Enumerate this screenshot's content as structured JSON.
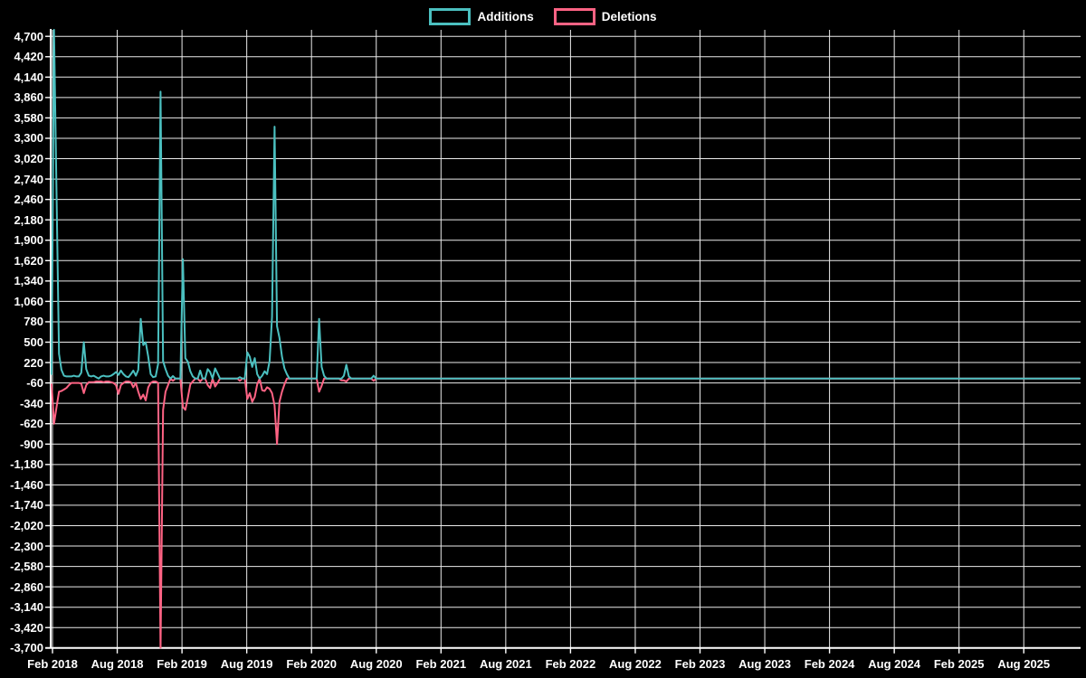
{
  "legend": {
    "items": [
      {
        "label": "Additions",
        "color": "#4BC0C0"
      },
      {
        "label": "Deletions",
        "color": "#FF6384"
      }
    ]
  },
  "chart_data": {
    "type": "line",
    "title": "",
    "xlabel": "",
    "ylabel": "",
    "grid": true,
    "legend_position": "top-center",
    "background_color": "#000000",
    "grid_color": "#FFFFFF",
    "axis_color": "#FFFFFF",
    "tick_text_color": "#FFFFFF",
    "x_axis": {
      "unit": "weeks",
      "start_label": "Feb 2018",
      "end_label": "Aug 2025",
      "tick_labels": [
        "Feb 2018",
        "Aug 2018",
        "Feb 2019",
        "Aug 2019",
        "Feb 2020",
        "Aug 2020",
        "Feb 2021",
        "Aug 2021",
        "Feb 2022",
        "Aug 2022",
        "Feb 2023",
        "Aug 2023",
        "Feb 2024",
        "Aug 2024",
        "Feb 2025",
        "Aug 2025"
      ]
    },
    "y_axis": {
      "tick_max": 4700,
      "tick_min": -3700,
      "tick_step": 280,
      "plot_max": 4790,
      "plot_min": -3700,
      "tick_labels": [
        "4,700",
        "4,420",
        "4,140",
        "3,860",
        "3,580",
        "3,300",
        "3,020",
        "2,740",
        "2,460",
        "2,180",
        "1,900",
        "1,620",
        "1,340",
        "1,060",
        "780",
        "500",
        "220",
        "-60",
        "-340",
        "-620",
        "-900",
        "-1,180",
        "-1,460",
        "-1,740",
        "-2,020",
        "-2,300",
        "-2,580",
        "-2,860",
        "-3,140",
        "-3,420",
        "-3,700"
      ]
    },
    "weeks_total": 415,
    "weeks_per_x_tick": 26.1,
    "series": [
      {
        "name": "Additions",
        "color": "#4BC0C0",
        "default_value": 0,
        "points_sparse": {
          "0": 60,
          "1": 4790,
          "2": 2520,
          "3": 340,
          "4": 120,
          "5": 40,
          "6": 30,
          "7": 30,
          "8": 30,
          "9": 40,
          "10": 30,
          "11": 30,
          "12": 80,
          "13": 500,
          "14": 130,
          "15": 40,
          "16": 30,
          "17": 40,
          "18": 20,
          "20": 30,
          "21": 40,
          "22": 30,
          "23": 30,
          "24": 40,
          "25": 60,
          "26": 90,
          "27": 50,
          "28": 110,
          "29": 60,
          "30": 30,
          "31": 20,
          "32": 60,
          "33": 110,
          "34": 40,
          "35": 120,
          "36": 820,
          "37": 460,
          "38": 500,
          "39": 300,
          "40": 60,
          "41": 20,
          "42": 30,
          "43": 200,
          "44": 3940,
          "45": 240,
          "46": 130,
          "47": 40,
          "49": 35,
          "53": 1640,
          "54": 280,
          "55": 230,
          "56": 100,
          "57": 30,
          "60": 110,
          "63": 130,
          "64": 90,
          "66": 140,
          "67": 70,
          "76": 20,
          "79": 360,
          "80": 300,
          "81": 160,
          "82": 280,
          "83": 60,
          "85": 40,
          "86": 100,
          "87": 60,
          "88": 240,
          "89": 850,
          "90": 3460,
          "91": 720,
          "92": 560,
          "93": 300,
          "94": 140,
          "95": 60,
          "108": 820,
          "109": 160,
          "110": 40,
          "118": 40,
          "119": 190,
          "120": 30,
          "130": 40
        }
      },
      {
        "name": "Deletions",
        "color": "#FF6384",
        "default_value": 0,
        "points_sparse": {
          "0": -80,
          "1": -620,
          "2": -390,
          "3": -180,
          "4": -170,
          "5": -150,
          "6": -130,
          "7": -90,
          "8": -60,
          "9": -60,
          "10": -60,
          "11": -60,
          "12": -70,
          "13": -200,
          "14": -90,
          "15": -50,
          "16": -50,
          "17": -50,
          "18": -40,
          "19": -40,
          "20": -40,
          "21": -50,
          "22": -40,
          "23": -40,
          "24": -50,
          "25": -60,
          "26": -90,
          "27": -210,
          "28": -90,
          "29": -60,
          "30": -40,
          "31": -40,
          "32": -50,
          "33": -120,
          "34": -60,
          "35": -180,
          "36": -280,
          "37": -220,
          "38": -300,
          "39": -120,
          "40": -60,
          "41": -40,
          "42": -40,
          "43": -60,
          "44": -3740,
          "45": -430,
          "46": -180,
          "47": -90,
          "49": -30,
          "53": -390,
          "54": -430,
          "55": -260,
          "56": -80,
          "57": -40,
          "60": -40,
          "63": -90,
          "64": -130,
          "66": -110,
          "67": -60,
          "76": -30,
          "79": -280,
          "80": -200,
          "81": -320,
          "82": -250,
          "83": -80,
          "85": -160,
          "86": -170,
          "87": -120,
          "88": -140,
          "89": -200,
          "90": -370,
          "91": -900,
          "92": -320,
          "93": -180,
          "94": -80,
          "108": -180,
          "109": -100,
          "117": -25,
          "118": -25,
          "119": -40,
          "130": -30
        }
      }
    ]
  }
}
